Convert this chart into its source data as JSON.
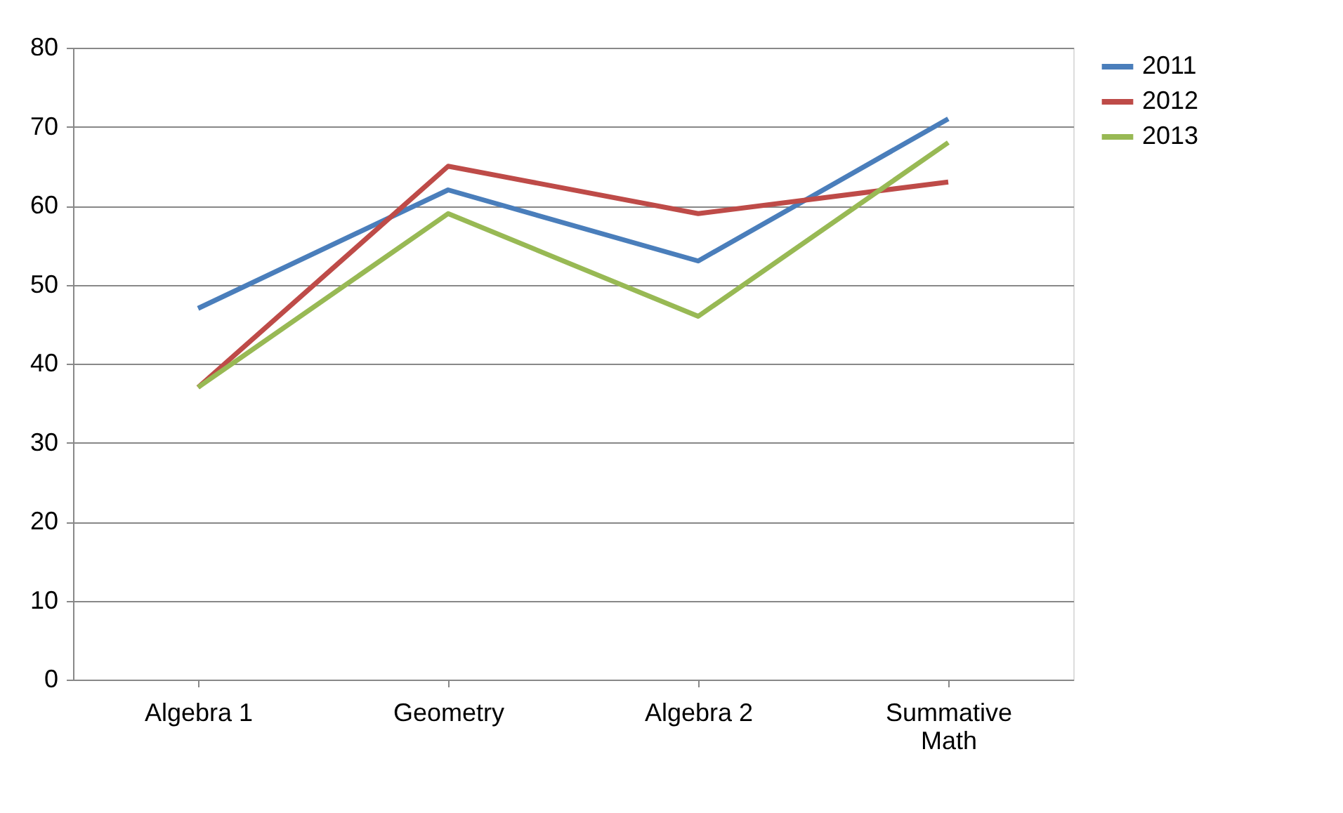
{
  "chart_data": {
    "type": "line",
    "categories": [
      "Algebra 1",
      "Geometry",
      "Algebra 2",
      "Summative Math"
    ],
    "series": [
      {
        "name": "2011",
        "color": "#4a7ebb",
        "values": [
          47,
          62,
          53,
          71
        ]
      },
      {
        "name": "2012",
        "color": "#be4b48",
        "values": [
          37,
          65,
          59,
          63
        ]
      },
      {
        "name": "2013",
        "color": "#98b954",
        "values": [
          37,
          59,
          46,
          68
        ]
      }
    ],
    "ylim": [
      0,
      80
    ],
    "yticks": [
      0,
      10,
      20,
      30,
      40,
      50,
      60,
      70,
      80
    ],
    "grid": "y",
    "legend": "right",
    "marker": "none",
    "line_style": "solid"
  }
}
